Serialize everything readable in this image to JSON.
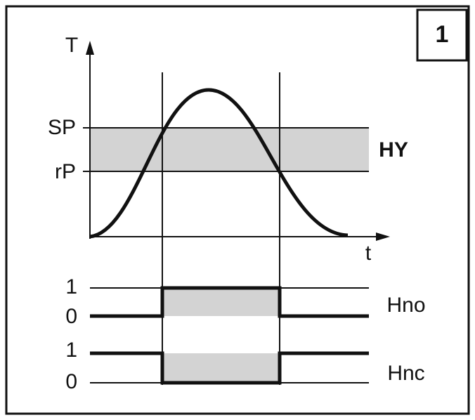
{
  "badge": "1",
  "axis": {
    "y_label": "T",
    "x_label": "t"
  },
  "levels": {
    "sp": "SP",
    "rp": "rP",
    "hysteresis": "HY"
  },
  "outputs": [
    {
      "name": "Hno",
      "high": "1",
      "low": "0"
    },
    {
      "name": "Hnc",
      "high": "1",
      "low": "0"
    }
  ]
}
